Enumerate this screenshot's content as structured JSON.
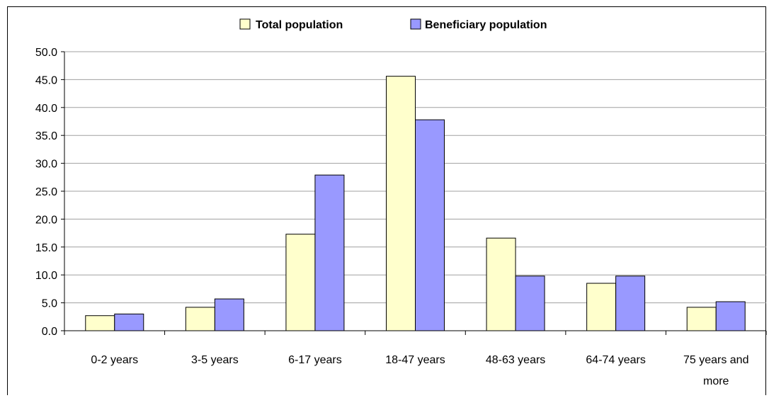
{
  "chart_data": {
    "type": "bar",
    "title": "",
    "xlabel": "",
    "ylabel": "",
    "categories": [
      "0-2 years",
      "3-5 years",
      "6-17 years",
      "18-47 years",
      "48-63 years",
      "64-74 years",
      "75 years and more"
    ],
    "series": [
      {
        "name": "Total population",
        "color": "#ffffcc",
        "values": [
          2.7,
          4.2,
          17.3,
          45.6,
          16.6,
          8.5,
          4.2
        ]
      },
      {
        "name": "Beneficiary population",
        "color": "#9999ff",
        "values": [
          3.0,
          5.7,
          27.9,
          37.8,
          9.8,
          9.8,
          5.2
        ]
      }
    ],
    "ylim": [
      0,
      50
    ],
    "yticks": [
      "0.0",
      "5.0",
      "10.0",
      "15.0",
      "20.0",
      "25.0",
      "30.0",
      "35.0",
      "40.0",
      "45.0",
      "50.0"
    ],
    "grid": true,
    "legend_position": "top"
  }
}
